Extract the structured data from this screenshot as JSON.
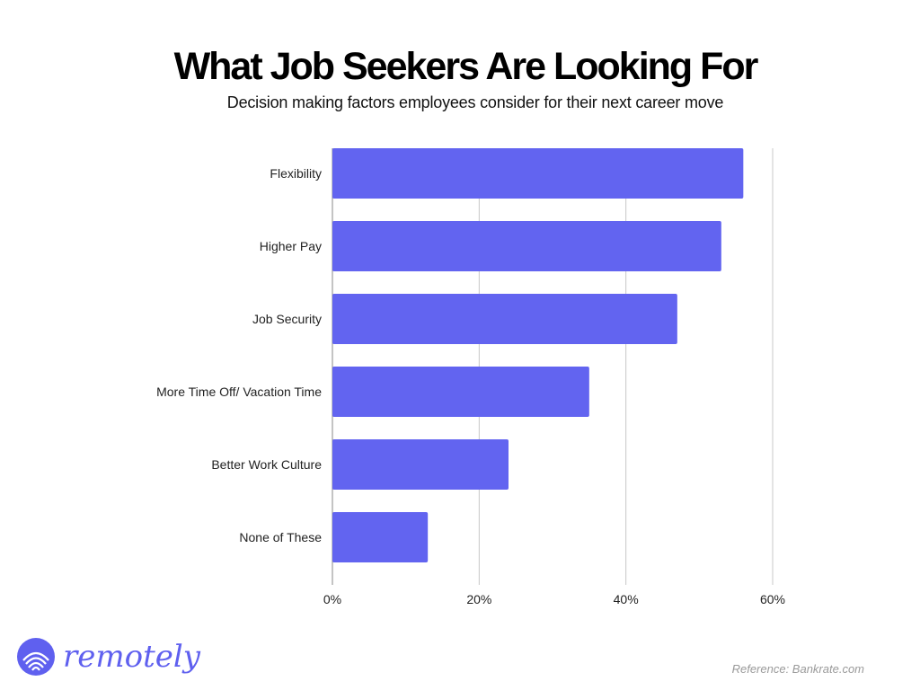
{
  "header": {
    "title": "What Job Seekers Are Looking For",
    "subtitle": "Decision making factors employees consider for their next career move"
  },
  "chart_data": {
    "type": "bar",
    "orientation": "horizontal",
    "categories": [
      "Flexibility",
      "Higher Pay",
      "Job Security",
      "More Time Off/ Vacation Time",
      "Better Work Culture",
      "None of These"
    ],
    "values": [
      56,
      53,
      47,
      35,
      24,
      13
    ],
    "unit": "%",
    "xlim": [
      0,
      60
    ],
    "xticks": [
      0,
      20,
      40,
      60
    ],
    "xtick_labels": [
      "0%",
      "20%",
      "40%",
      "60%"
    ],
    "grid": "vertical",
    "bar_color": "#6264f0"
  },
  "footer": {
    "brand": "remotely",
    "brand_icon": "remotely-logo-icon",
    "brand_color": "#5f60ef",
    "reference": "Reference: Bankrate.com"
  }
}
